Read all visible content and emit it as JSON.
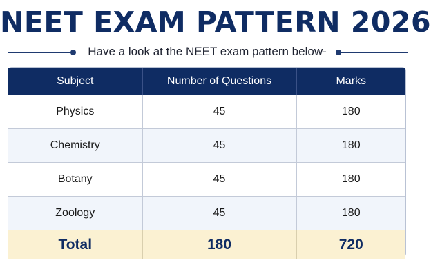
{
  "title": "NEET EXAM PATTERN 2026",
  "subtitle": "Have a look at the NEET exam pattern below-",
  "colors": {
    "primary_navy": "#0f2c63",
    "total_row_bg": "#fbf1d2",
    "alt_row_bg": "#f1f5fb"
  },
  "table": {
    "headers": [
      "Subject",
      "Number of Questions",
      "Marks"
    ],
    "rows": [
      {
        "subject": "Physics",
        "questions": "45",
        "marks": "180"
      },
      {
        "subject": "Chemistry",
        "questions": "45",
        "marks": "180"
      },
      {
        "subject": "Botany",
        "questions": "45",
        "marks": "180"
      },
      {
        "subject": "Zoology",
        "questions": "45",
        "marks": "180"
      }
    ],
    "total": {
      "label": "Total",
      "questions": "180",
      "marks": "720"
    }
  }
}
